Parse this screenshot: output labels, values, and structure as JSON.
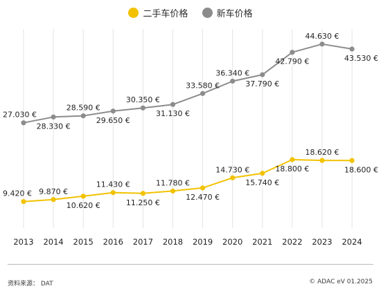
{
  "chart_data": {
    "type": "line",
    "categories": [
      "2013",
      "2014",
      "2015",
      "2016",
      "2017",
      "2018",
      "2019",
      "2020",
      "2021",
      "2022",
      "2023",
      "2024"
    ],
    "series": [
      {
        "name": "二手车价格",
        "color": "#f2c200",
        "values": [
          9420,
          9870,
          10620,
          11430,
          11250,
          11780,
          12470,
          14730,
          15740,
          18800,
          18620,
          18600
        ],
        "labels": [
          "9.420 €",
          "9.870 €",
          "10.620 €",
          "11.430 €",
          "11.250 €",
          "11.780 €",
          "12.470 €",
          "14.730 €",
          "15.740 €",
          "18.800 €",
          "18.620 €",
          "18.600 €"
        ]
      },
      {
        "name": "新车价格",
        "color": "#8c8c8c",
        "values": [
          27030,
          28330,
          28590,
          29650,
          30350,
          31130,
          33580,
          36340,
          37790,
          42790,
          44630,
          43530
        ],
        "labels": [
          "27.030 €",
          "28.330 €",
          "28.590 €",
          "29.650 €",
          "30.350 €",
          "31.130 €",
          "33.580 €",
          "36.340 €",
          "37.790 €",
          "42.790 €",
          "44.630 €",
          "43.530 €"
        ]
      }
    ],
    "ylim": [
      3500,
      48000
    ],
    "grid": "vertical"
  },
  "legend": {
    "used_label": "二手车价格",
    "new_label": "新车价格"
  },
  "footer": {
    "source": "资料来源：  DAT",
    "copyright": "© ADAC eV 01.2025"
  }
}
